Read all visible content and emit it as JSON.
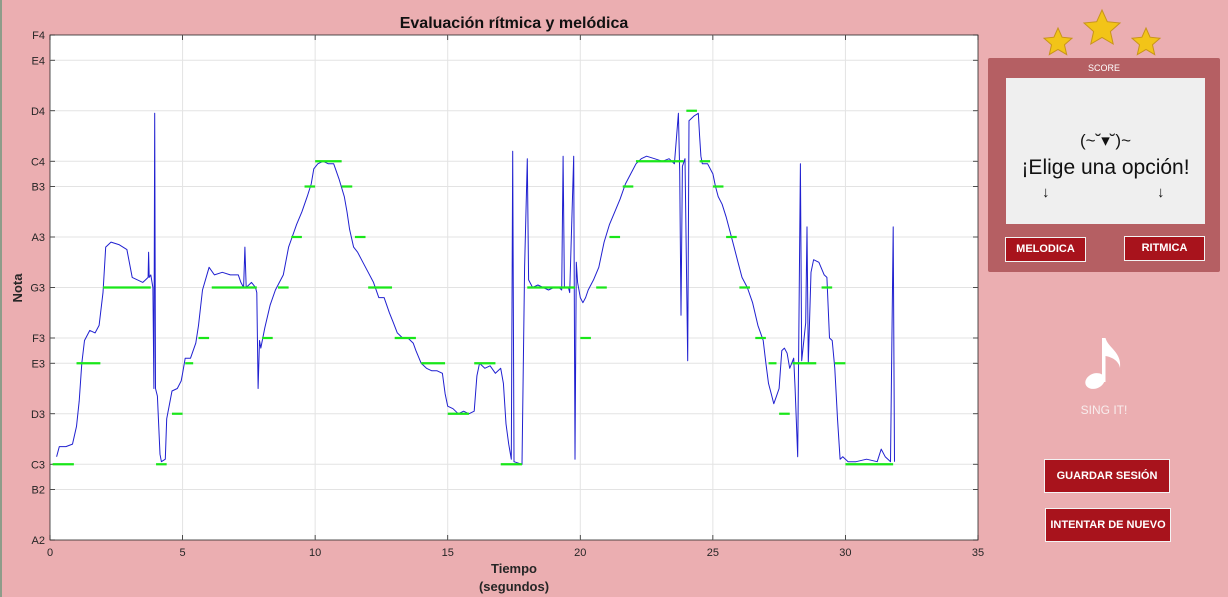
{
  "chart_data": {
    "type": "line",
    "title": "Evaluación rítmica y melódica",
    "xlabel": [
      "Tiempo",
      "(segundos)"
    ],
    "ylabel": "Nota",
    "xlim": [
      0,
      35
    ],
    "x_ticks": [
      0,
      5,
      10,
      15,
      20,
      25,
      30,
      35
    ],
    "y_ticks": [
      {
        "label": "A2",
        "midi": 45
      },
      {
        "label": "B2",
        "midi": 47
      },
      {
        "label": "C3",
        "midi": 48
      },
      {
        "label": "D3",
        "midi": 50
      },
      {
        "label": "E3",
        "midi": 52
      },
      {
        "label": "F3",
        "midi": 53
      },
      {
        "label": "G3",
        "midi": 55
      },
      {
        "label": "A3",
        "midi": 57
      },
      {
        "label": "B3",
        "midi": 59
      },
      {
        "label": "C4",
        "midi": 60
      },
      {
        "label": "D4",
        "midi": 62
      },
      {
        "label": "E4",
        "midi": 64
      },
      {
        "label": "F4",
        "midi": 65
      }
    ],
    "grid": true,
    "series": [
      {
        "name": "",
        "color": "#2020d0",
        "style": "line",
        "points": [
          [
            0.25,
            48.3
          ],
          [
            0.35,
            48.7
          ],
          [
            0.6,
            48.7
          ],
          [
            0.85,
            48.8
          ],
          [
            1.0,
            49.5
          ],
          [
            1.1,
            50.5
          ],
          [
            1.2,
            52
          ],
          [
            1.3,
            52.9
          ],
          [
            1.5,
            53.3
          ],
          [
            1.7,
            53.2
          ],
          [
            1.85,
            53.5
          ],
          [
            2.0,
            54.8
          ],
          [
            2.1,
            56.6
          ],
          [
            2.3,
            56.8
          ],
          [
            2.6,
            56.7
          ],
          [
            2.9,
            56.5
          ],
          [
            3.1,
            55.4
          ],
          [
            3.3,
            55.3
          ],
          [
            3.5,
            55.2
          ],
          [
            3.6,
            55.3
          ],
          [
            3.7,
            55.4
          ],
          [
            3.72,
            56.4
          ],
          [
            3.74,
            55.4
          ],
          [
            3.8,
            55.5
          ],
          [
            3.88,
            55
          ],
          [
            3.92,
            51
          ],
          [
            3.95,
            61.9
          ],
          [
            3.98,
            51
          ],
          [
            4.05,
            50.7
          ],
          [
            4.15,
            48.4
          ],
          [
            4.2,
            48.1
          ],
          [
            4.35,
            48.2
          ],
          [
            4.4,
            49.8
          ],
          [
            4.6,
            50.9
          ],
          [
            4.8,
            51.0
          ],
          [
            4.95,
            51.3
          ],
          [
            5.0,
            51.6
          ],
          [
            5.1,
            52.2
          ],
          [
            5.3,
            52.2
          ],
          [
            5.5,
            52.8
          ],
          [
            5.6,
            53.5
          ],
          [
            5.75,
            54.9
          ],
          [
            6.0,
            55.8
          ],
          [
            6.2,
            55.5
          ],
          [
            6.5,
            55.6
          ],
          [
            6.8,
            55.5
          ],
          [
            7.1,
            55.5
          ],
          [
            7.2,
            55.2
          ],
          [
            7.3,
            55.0
          ],
          [
            7.35,
            56.6
          ],
          [
            7.4,
            55.0
          ],
          [
            7.6,
            55.2
          ],
          [
            7.75,
            55.0
          ],
          [
            7.8,
            54.8
          ],
          [
            7.85,
            51.0
          ],
          [
            7.9,
            52.9
          ],
          [
            7.95,
            52.6
          ],
          [
            8.1,
            53.4
          ],
          [
            8.3,
            54.3
          ],
          [
            8.5,
            54.9
          ],
          [
            8.8,
            55.5
          ],
          [
            9.0,
            56.6
          ],
          [
            9.1,
            56.9
          ],
          [
            9.3,
            57.5
          ],
          [
            9.5,
            58.0
          ],
          [
            9.7,
            58.6
          ],
          [
            9.85,
            59.1
          ],
          [
            9.95,
            59.7
          ],
          [
            10.1,
            59.9
          ],
          [
            10.3,
            60.0
          ],
          [
            10.5,
            59.9
          ],
          [
            10.7,
            59.9
          ],
          [
            10.9,
            59.3
          ],
          [
            11.1,
            58.6
          ],
          [
            11.2,
            58.0
          ],
          [
            11.3,
            57.3
          ],
          [
            11.45,
            56.6
          ],
          [
            11.6,
            56.4
          ],
          [
            11.8,
            56.0
          ],
          [
            12.0,
            55.6
          ],
          [
            12.2,
            55.2
          ],
          [
            12.4,
            54.6
          ],
          [
            12.6,
            54.6
          ],
          [
            12.8,
            54.0
          ],
          [
            12.95,
            53.6
          ],
          [
            13.1,
            53.2
          ],
          [
            13.3,
            53.0
          ],
          [
            13.5,
            53.0
          ],
          [
            13.7,
            52.8
          ],
          [
            13.8,
            52.5
          ],
          [
            14.0,
            52.0
          ],
          [
            14.2,
            51.8
          ],
          [
            14.4,
            51.7
          ],
          [
            14.6,
            51.7
          ],
          [
            14.8,
            51.6
          ],
          [
            14.9,
            50.8
          ],
          [
            15.0,
            50.3
          ],
          [
            15.2,
            50.2
          ],
          [
            15.4,
            50.0
          ],
          [
            15.6,
            50.1
          ],
          [
            15.8,
            50.0
          ],
          [
            16.0,
            50.1
          ],
          [
            16.1,
            51.5
          ],
          [
            16.2,
            52.0
          ],
          [
            16.4,
            51.8
          ],
          [
            16.6,
            51.9
          ],
          [
            16.8,
            51.6
          ],
          [
            17.0,
            51.8
          ],
          [
            17.1,
            51.2
          ],
          [
            17.2,
            49.6
          ],
          [
            17.3,
            48.8
          ],
          [
            17.4,
            48.2
          ],
          [
            17.45,
            60.4
          ],
          [
            17.5,
            48.1
          ],
          [
            17.8,
            48.0
          ],
          [
            17.9,
            55.8
          ],
          [
            18.0,
            60.1
          ],
          [
            18.05,
            55.3
          ],
          [
            18.2,
            55.0
          ],
          [
            18.4,
            55.1
          ],
          [
            18.6,
            55.0
          ],
          [
            18.8,
            54.9
          ],
          [
            19.0,
            55.0
          ],
          [
            19.2,
            55.0
          ],
          [
            19.3,
            54.9
          ],
          [
            19.35,
            60.2
          ],
          [
            19.4,
            55.0
          ],
          [
            19.55,
            55.0
          ],
          [
            19.6,
            54.8
          ],
          [
            19.75,
            60.2
          ],
          [
            19.8,
            48.2
          ],
          [
            19.85,
            56.0
          ],
          [
            19.9,
            55.2
          ],
          [
            20.0,
            54.6
          ],
          [
            20.1,
            54.4
          ],
          [
            20.2,
            54.6
          ],
          [
            20.3,
            54.9
          ],
          [
            20.5,
            55.3
          ],
          [
            20.7,
            55.8
          ],
          [
            20.9,
            56.8
          ],
          [
            21.1,
            57.5
          ],
          [
            21.3,
            58.0
          ],
          [
            21.5,
            58.5
          ],
          [
            21.7,
            59.1
          ],
          [
            21.9,
            59.5
          ],
          [
            22.1,
            59.9
          ],
          [
            22.3,
            60.1
          ],
          [
            22.5,
            60.2
          ],
          [
            22.8,
            60.1
          ],
          [
            23.1,
            60.0
          ],
          [
            23.35,
            60.1
          ],
          [
            23.55,
            59.9
          ],
          [
            23.7,
            61.9
          ],
          [
            23.75,
            59.6
          ],
          [
            23.8,
            53.9
          ],
          [
            23.85,
            59.8
          ],
          [
            23.95,
            60.1
          ],
          [
            24.05,
            52.1
          ],
          [
            24.1,
            61.6
          ],
          [
            24.3,
            61.8
          ],
          [
            24.45,
            61.9
          ],
          [
            24.5,
            61.0
          ],
          [
            24.55,
            60.2
          ],
          [
            24.6,
            59.9
          ],
          [
            24.8,
            59.9
          ],
          [
            25.0,
            59.5
          ],
          [
            25.1,
            59.0
          ],
          [
            25.2,
            58.6
          ],
          [
            25.35,
            58.3
          ],
          [
            25.5,
            57.8
          ],
          [
            25.65,
            57.2
          ],
          [
            25.8,
            56.6
          ],
          [
            25.95,
            56.0
          ],
          [
            26.1,
            55.4
          ],
          [
            26.3,
            55.0
          ],
          [
            26.5,
            54.4
          ],
          [
            26.7,
            53.5
          ],
          [
            26.9,
            52.9
          ],
          [
            27.0,
            52.0
          ],
          [
            27.1,
            51.2
          ],
          [
            27.2,
            50.8
          ],
          [
            27.3,
            50.4
          ],
          [
            27.4,
            50.7
          ],
          [
            27.5,
            51.0
          ],
          [
            27.6,
            52.5
          ],
          [
            27.7,
            52.6
          ],
          [
            27.8,
            52.4
          ],
          [
            27.9,
            51.8
          ],
          [
            28.05,
            52.2
          ],
          [
            28.1,
            51.0
          ],
          [
            28.2,
            48.3
          ],
          [
            28.3,
            59.9
          ],
          [
            28.35,
            52.1
          ],
          [
            28.5,
            53.6
          ],
          [
            28.55,
            57.4
          ],
          [
            28.6,
            52.0
          ],
          [
            28.7,
            55.6
          ],
          [
            28.8,
            56.1
          ],
          [
            29.0,
            56.0
          ],
          [
            29.2,
            55.5
          ],
          [
            29.3,
            55.4
          ],
          [
            29.4,
            53.0
          ],
          [
            29.5,
            52.9
          ],
          [
            29.6,
            51.8
          ],
          [
            29.7,
            49.8
          ],
          [
            29.8,
            48.2
          ],
          [
            29.9,
            48.3
          ],
          [
            30.1,
            48.1
          ],
          [
            30.4,
            48.1
          ],
          [
            30.8,
            48.2
          ],
          [
            31.2,
            48.1
          ],
          [
            31.35,
            48.6
          ],
          [
            31.5,
            48.3
          ],
          [
            31.7,
            48.1
          ],
          [
            31.8,
            57.4
          ],
          [
            31.85,
            48.1
          ]
        ]
      },
      {
        "name": "",
        "color": "#19e619",
        "style": "segments",
        "segments": [
          [
            0.1,
            0.9,
            48
          ],
          [
            1.0,
            1.9,
            52
          ],
          [
            2.0,
            3.8,
            55
          ],
          [
            4.0,
            4.4,
            48
          ],
          [
            4.6,
            5.0,
            50
          ],
          [
            5.1,
            5.4,
            52
          ],
          [
            5.6,
            6.0,
            53
          ],
          [
            6.1,
            7.8,
            55
          ],
          [
            8.0,
            8.4,
            53
          ],
          [
            8.6,
            9.0,
            55
          ],
          [
            9.1,
            9.5,
            57
          ],
          [
            9.6,
            10.0,
            59
          ],
          [
            10.0,
            11.0,
            60
          ],
          [
            11.0,
            11.4,
            59
          ],
          [
            11.5,
            11.9,
            57
          ],
          [
            12.0,
            12.9,
            55
          ],
          [
            13.0,
            13.8,
            53
          ],
          [
            14.0,
            14.9,
            52
          ],
          [
            15.0,
            15.8,
            50
          ],
          [
            16.0,
            16.8,
            52
          ],
          [
            17.0,
            17.8,
            48
          ],
          [
            18.0,
            19.8,
            55
          ],
          [
            20.0,
            20.4,
            53
          ],
          [
            20.6,
            21.0,
            55
          ],
          [
            21.1,
            21.5,
            57
          ],
          [
            21.6,
            22.0,
            59
          ],
          [
            22.1,
            23.9,
            60
          ],
          [
            24.0,
            24.4,
            62
          ],
          [
            24.5,
            24.9,
            60
          ],
          [
            25.0,
            25.4,
            59
          ],
          [
            25.5,
            25.9,
            57
          ],
          [
            26.0,
            26.4,
            55
          ],
          [
            26.6,
            27.0,
            53
          ],
          [
            27.1,
            27.4,
            52
          ],
          [
            27.5,
            27.9,
            50
          ],
          [
            28.0,
            28.9,
            52
          ],
          [
            29.1,
            29.5,
            55
          ],
          [
            29.6,
            30.0,
            52
          ],
          [
            30.0,
            31.8,
            48
          ]
        ]
      }
    ]
  },
  "score_panel": {
    "label": "SCORE",
    "face": "(~˘▾˘)~",
    "message": "¡Elige una opción!",
    "arrow_left": "↓",
    "arrow_right": "↓",
    "melodica_label": "MELODICA",
    "ritmica_label": "RITMICA"
  },
  "sing": {
    "label": "SING IT!",
    "icon": "music-note-icon"
  },
  "buttons": {
    "guardar_label": "GUARDAR SESIÓN",
    "intentar_label": "INTENTAR DE NUEVO",
    "color": "#a8131c"
  },
  "stars": {
    "count": 3,
    "icon": "star-icon",
    "color": "#f2c418"
  }
}
